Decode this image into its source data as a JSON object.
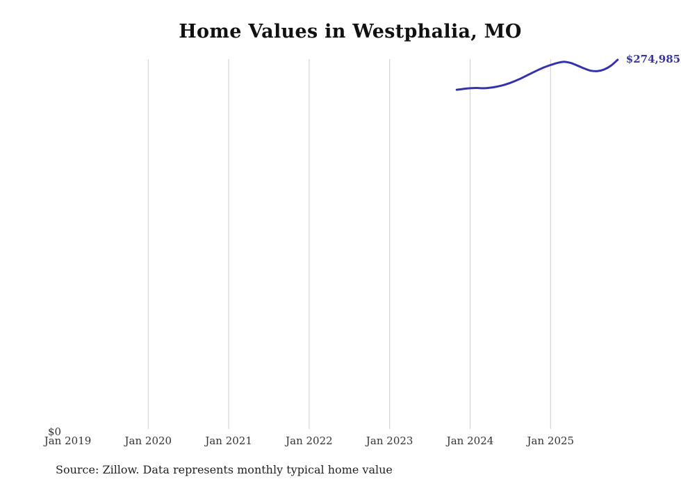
{
  "chart_data": {
    "type": "line",
    "title": "Home Values in Westphalia, MO",
    "xlabel": "",
    "ylabel": "",
    "y_zero_label": "$0",
    "end_label": "$274,985",
    "source_note": "Source: Zillow. Data represents monthly typical home value",
    "line_color": "#3432b0",
    "gridline_color": "#cccccc",
    "ylim": [
      0,
      280000
    ],
    "x_ticks": [
      {
        "label": "Jan 2019",
        "gridline": false
      },
      {
        "label": "Jan 2020",
        "gridline": true
      },
      {
        "label": "Jan 2021",
        "gridline": true
      },
      {
        "label": "Jan 2022",
        "gridline": true
      },
      {
        "label": "Jan 2023",
        "gridline": true
      },
      {
        "label": "Jan 2024",
        "gridline": true
      },
      {
        "label": "Jan 2025",
        "gridline": true
      }
    ],
    "series": [
      {
        "name": "Monthly typical home value",
        "points": [
          {
            "date": "2023-11",
            "value": 252800
          },
          {
            "date": "2023-12",
            "value": 253400
          },
          {
            "date": "2024-01",
            "value": 253900
          },
          {
            "date": "2024-02",
            "value": 254100
          },
          {
            "date": "2024-03",
            "value": 253900
          },
          {
            "date": "2024-04",
            "value": 254300
          },
          {
            "date": "2024-05",
            "value": 255100
          },
          {
            "date": "2024-06",
            "value": 256300
          },
          {
            "date": "2024-07",
            "value": 257900
          },
          {
            "date": "2024-08",
            "value": 259900
          },
          {
            "date": "2024-09",
            "value": 262200
          },
          {
            "date": "2024-10",
            "value": 264700
          },
          {
            "date": "2024-11",
            "value": 267100
          },
          {
            "date": "2024-12",
            "value": 269300
          },
          {
            "date": "2025-01",
            "value": 271100
          },
          {
            "date": "2025-02",
            "value": 272600
          },
          {
            "date": "2025-03",
            "value": 273500
          },
          {
            "date": "2025-04",
            "value": 272600
          },
          {
            "date": "2025-05",
            "value": 270700
          },
          {
            "date": "2025-06",
            "value": 268600
          },
          {
            "date": "2025-07",
            "value": 266900
          },
          {
            "date": "2025-08",
            "value": 266600
          },
          {
            "date": "2025-09",
            "value": 267800
          },
          {
            "date": "2025-10",
            "value": 270600
          },
          {
            "date": "2025-11",
            "value": 274985
          }
        ]
      }
    ]
  }
}
